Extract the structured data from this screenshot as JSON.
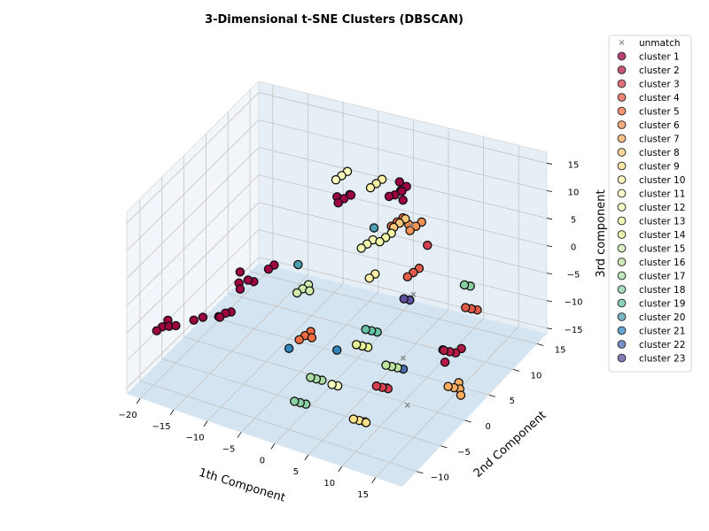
{
  "chart_data": {
    "type": "scatter",
    "projection": "3d",
    "title": "3-Dimensional t-SNE Clusters (DBSCAN)",
    "xlabel": "1th Component",
    "ylabel": "2nd Component",
    "zlabel": "3rd component",
    "xlim": [
      -22,
      19
    ],
    "ylim": [
      -13,
      17
    ],
    "zlim": [
      -16,
      17
    ],
    "xticks": [
      -20,
      -15,
      -10,
      -5,
      0,
      5,
      10,
      15
    ],
    "yticks": [
      -10,
      -5,
      0,
      5,
      10,
      15
    ],
    "zticks": [
      -15,
      -10,
      -5,
      0,
      5,
      10,
      15
    ],
    "grid": true,
    "legend_position": "upper-right-outside",
    "series": [
      {
        "name": "unmatch",
        "marker": "x",
        "color": "#808080",
        "points": [
          [
            3,
            12,
            3
          ],
          [
            6,
            8,
            -5
          ],
          [
            12,
            -2,
            -14
          ],
          [
            10,
            0,
            -8
          ]
        ]
      },
      {
        "name": "cluster 1",
        "color": "#9e0142",
        "points": [
          [
            -20,
            -8,
            -7
          ],
          [
            -19,
            -8,
            -6.5
          ],
          [
            -20.5,
            -8.5,
            -7.5
          ],
          [
            -19.5,
            -7.5,
            -6
          ],
          [
            -18,
            -8,
            -6
          ],
          [
            -16,
            -7,
            -5
          ],
          [
            -15,
            -6.5,
            -4.5
          ],
          [
            -13,
            -6,
            -4
          ],
          [
            -12,
            -6,
            -3
          ],
          [
            -11.5,
            -5.5,
            -3
          ],
          [
            -12.5,
            -6.5,
            -3.5
          ],
          [
            -12,
            -3,
            0
          ],
          [
            -11,
            -2.5,
            0.5
          ],
          [
            -11.5,
            -3.5,
            -0.5
          ],
          [
            -10.5,
            -2,
            0
          ],
          [
            -12.5,
            -2,
            1
          ],
          [
            -9,
            -1,
            2
          ],
          [
            -8.5,
            -0.5,
            2.5
          ],
          [
            -4,
            8,
            9
          ],
          [
            -3.5,
            8.5,
            9.5
          ],
          [
            -3,
            8,
            10
          ],
          [
            -4.5,
            7.5,
            8.5
          ],
          [
            -5,
            8,
            9
          ],
          [
            2,
            10,
            10
          ],
          [
            2.5,
            10.5,
            10.5
          ],
          [
            3,
            10,
            11
          ],
          [
            1.5,
            9.5,
            10
          ],
          [
            3.5,
            9.5,
            10
          ],
          [
            2,
            11,
            11.5
          ],
          [
            3,
            11,
            11
          ]
        ]
      },
      {
        "name": "cluster 2",
        "color": "#b41947",
        "points": [
          [
            14,
            4,
            -9
          ],
          [
            14.5,
            4.5,
            -9.5
          ],
          [
            13.5,
            3.5,
            -8.5
          ],
          [
            15,
            5,
            -9
          ],
          [
            13,
            4,
            -9
          ],
          [
            14,
            3,
            -10
          ]
        ]
      },
      {
        "name": "cluster 3",
        "color": "#d53e4f",
        "points": [
          [
            4,
            14,
            -2
          ],
          [
            9,
            -3,
            -11
          ],
          [
            9.5,
            -2.5,
            -11.5
          ],
          [
            8.5,
            -3.5,
            -10.5
          ]
        ]
      },
      {
        "name": "cluster 4",
        "color": "#e55c4a",
        "points": [
          [
            6,
            8,
            -1
          ],
          [
            6.5,
            8.5,
            -0.5
          ],
          [
            5.5,
            7.5,
            -1.5
          ],
          [
            13,
            10,
            -7
          ],
          [
            13.5,
            10.5,
            -7.5
          ],
          [
            12.5,
            9.5,
            -6.5
          ]
        ]
      },
      {
        "name": "cluster 5",
        "color": "#f46d43",
        "points": [
          [
            -3,
            -2,
            -7
          ],
          [
            -2.5,
            -1.5,
            -6.5
          ],
          [
            -3.5,
            -2.5,
            -7.5
          ],
          [
            -2,
            -2,
            -7
          ],
          [
            1,
            12,
            3
          ],
          [
            1.5,
            12.5,
            3.5
          ],
          [
            0.5,
            11.5,
            2.5
          ]
        ]
      },
      {
        "name": "cluster 6",
        "color": "#f89355",
        "points": [
          [
            3,
            13,
            2
          ],
          [
            3.5,
            13.5,
            2.5
          ],
          [
            2.5,
            12.5,
            1.5
          ],
          [
            2,
            13,
            2
          ]
        ]
      },
      {
        "name": "cluster 7",
        "color": "#fdae61",
        "points": [
          [
            16,
            2,
            -13
          ],
          [
            16.5,
            2.5,
            -13.5
          ],
          [
            15.5,
            1.5,
            -12.5
          ],
          [
            16,
            3,
            -13
          ],
          [
            17,
            2,
            -14
          ]
        ]
      },
      {
        "name": "cluster 8",
        "color": "#fdc877",
        "points": [
          [
            2,
            11,
            4
          ],
          [
            2.5,
            11.5,
            4.5
          ],
          [
            1.5,
            10.5,
            3.5
          ]
        ]
      },
      {
        "name": "cluster 9",
        "color": "#fee08b",
        "points": [
          [
            7,
            -5,
            -16
          ],
          [
            7.5,
            -4.5,
            -16.5
          ],
          [
            6.5,
            -5.5,
            -15.5
          ],
          [
            8,
            -5,
            -16
          ]
        ]
      },
      {
        "name": "cluster 10",
        "color": "#fff0a8",
        "points": [
          [
            -2,
            12,
            9
          ],
          [
            -1.5,
            12.5,
            9.5
          ],
          [
            -2.5,
            11.5,
            8.5
          ],
          [
            1,
            6,
            -2
          ],
          [
            1.5,
            6.5,
            -1.5
          ]
        ]
      },
      {
        "name": "cluster 11",
        "color": "#ffffbf",
        "points": [
          [
            -5,
            9,
            12
          ],
          [
            -4.5,
            9.5,
            12.5
          ],
          [
            -5.5,
            8.5,
            11.5
          ],
          [
            3,
            -5,
            -11
          ],
          [
            3.5,
            -4.5,
            -11.5
          ]
        ]
      },
      {
        "name": "cluster 12",
        "color": "#f6fbb2",
        "points": [
          [
            0,
            7,
            3
          ],
          [
            0.5,
            7.5,
            3.5
          ],
          [
            -0.5,
            6.5,
            2.5
          ]
        ]
      },
      {
        "name": "cluster 13",
        "color": "#eef8a6",
        "points": [
          [
            2,
            8,
            4
          ],
          [
            2.5,
            8.5,
            4.5
          ],
          [
            1.5,
            7.5,
            3.5
          ]
        ]
      },
      {
        "name": "cluster 14",
        "color": "#e6f598",
        "points": [
          [
            4,
            0,
            -8
          ],
          [
            4.5,
            0.5,
            -8.5
          ],
          [
            3.5,
            -0.5,
            -7.5
          ]
        ]
      },
      {
        "name": "cluster 15",
        "color": "#d1ecab",
        "points": [
          [
            -6,
            2,
            -3
          ],
          [
            -5.5,
            2.5,
            -2.5
          ],
          [
            -6.5,
            1.5,
            -3.5
          ],
          [
            -5,
            2,
            -3
          ]
        ]
      },
      {
        "name": "cluster 16",
        "color": "#bee5a0",
        "points": [
          [
            9,
            -1,
            -9
          ],
          [
            9.5,
            -0.5,
            -9.5
          ],
          [
            8.5,
            -1.5,
            -8.5
          ]
        ]
      },
      {
        "name": "cluster 17",
        "color": "#abdda4",
        "points": [
          [
            0,
            -4,
            -12
          ],
          [
            0.5,
            -3.5,
            -12.5
          ],
          [
            -0.5,
            -4.5,
            -11.5
          ]
        ]
      },
      {
        "name": "cluster 18",
        "color": "#89d0a4",
        "points": [
          [
            -1,
            -6,
            -15
          ],
          [
            -0.5,
            -5.5,
            -15.5
          ],
          [
            -1.5,
            -6.5,
            -14.5
          ],
          [
            12,
            10,
            -3
          ],
          [
            12.5,
            10.5,
            -3.5
          ]
        ]
      },
      {
        "name": "cluster 19",
        "color": "#66c2a5",
        "points": [
          [
            4,
            2,
            -7
          ],
          [
            4.5,
            2.5,
            -7.5
          ],
          [
            3.5,
            1.5,
            -6.5
          ]
        ]
      },
      {
        "name": "cluster 20",
        "color": "#4ba0b1",
        "points": [
          [
            -8,
            4,
            -1
          ],
          [
            -1,
            10,
            3
          ]
        ]
      },
      {
        "name": "cluster 21",
        "color": "#3288bd",
        "points": [
          [
            -4,
            -4,
            -8
          ],
          [
            1,
            -1,
            -9
          ]
        ]
      },
      {
        "name": "cluster 22",
        "color": "#4a6cb0",
        "points": [
          [
            10,
            0,
            -10
          ],
          [
            9,
            -2,
            -12
          ]
        ]
      },
      {
        "name": "cluster 23",
        "color": "#5e4fa2",
        "points": [
          [
            6,
            6,
            -4
          ],
          [
            6.5,
            6.5,
            -4.5
          ]
        ]
      }
    ]
  }
}
